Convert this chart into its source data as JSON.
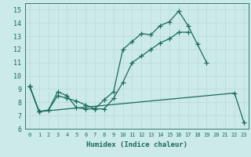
{
  "xlabel": "Humidex (Indice chaleur)",
  "ylabel": "",
  "xlim": [
    -0.5,
    23.5
  ],
  "ylim": [
    6,
    15.5
  ],
  "yticks": [
    6,
    7,
    8,
    9,
    10,
    11,
    12,
    13,
    14,
    15
  ],
  "xticks": [
    0,
    1,
    2,
    3,
    4,
    5,
    6,
    7,
    8,
    9,
    10,
    11,
    12,
    13,
    14,
    15,
    16,
    17,
    18,
    19,
    20,
    21,
    22,
    23
  ],
  "background_color": "#cceae8",
  "grid_major_color": "#b8d8d6",
  "grid_minor_color": "#d4eceb",
  "line_color": "#1a6b5a",
  "line1_x": [
    0,
    1,
    2,
    3,
    4,
    5,
    6,
    7,
    8,
    9,
    10,
    11,
    12,
    13,
    14,
    15,
    16,
    17,
    18,
    19
  ],
  "line1_y": [
    9.2,
    7.3,
    7.4,
    8.8,
    8.5,
    7.6,
    7.5,
    7.5,
    8.2,
    8.8,
    12.0,
    12.6,
    13.2,
    13.1,
    13.8,
    14.1,
    14.9,
    13.8,
    12.4,
    11.0
  ],
  "line2_x": [
    0,
    1,
    2,
    3,
    4,
    5,
    6,
    7,
    8,
    9,
    10,
    11,
    12,
    13,
    14,
    15,
    16,
    17
  ],
  "line2_y": [
    9.2,
    7.3,
    7.4,
    8.5,
    8.3,
    8.1,
    7.8,
    7.5,
    7.5,
    8.3,
    9.5,
    11.0,
    11.5,
    12.0,
    12.5,
    12.8,
    13.3,
    13.3
  ],
  "line3_x": [
    0,
    1,
    22,
    23
  ],
  "line3_y": [
    9.2,
    7.3,
    8.7,
    6.5
  ],
  "marker_size": 4,
  "linewidth": 0.9
}
